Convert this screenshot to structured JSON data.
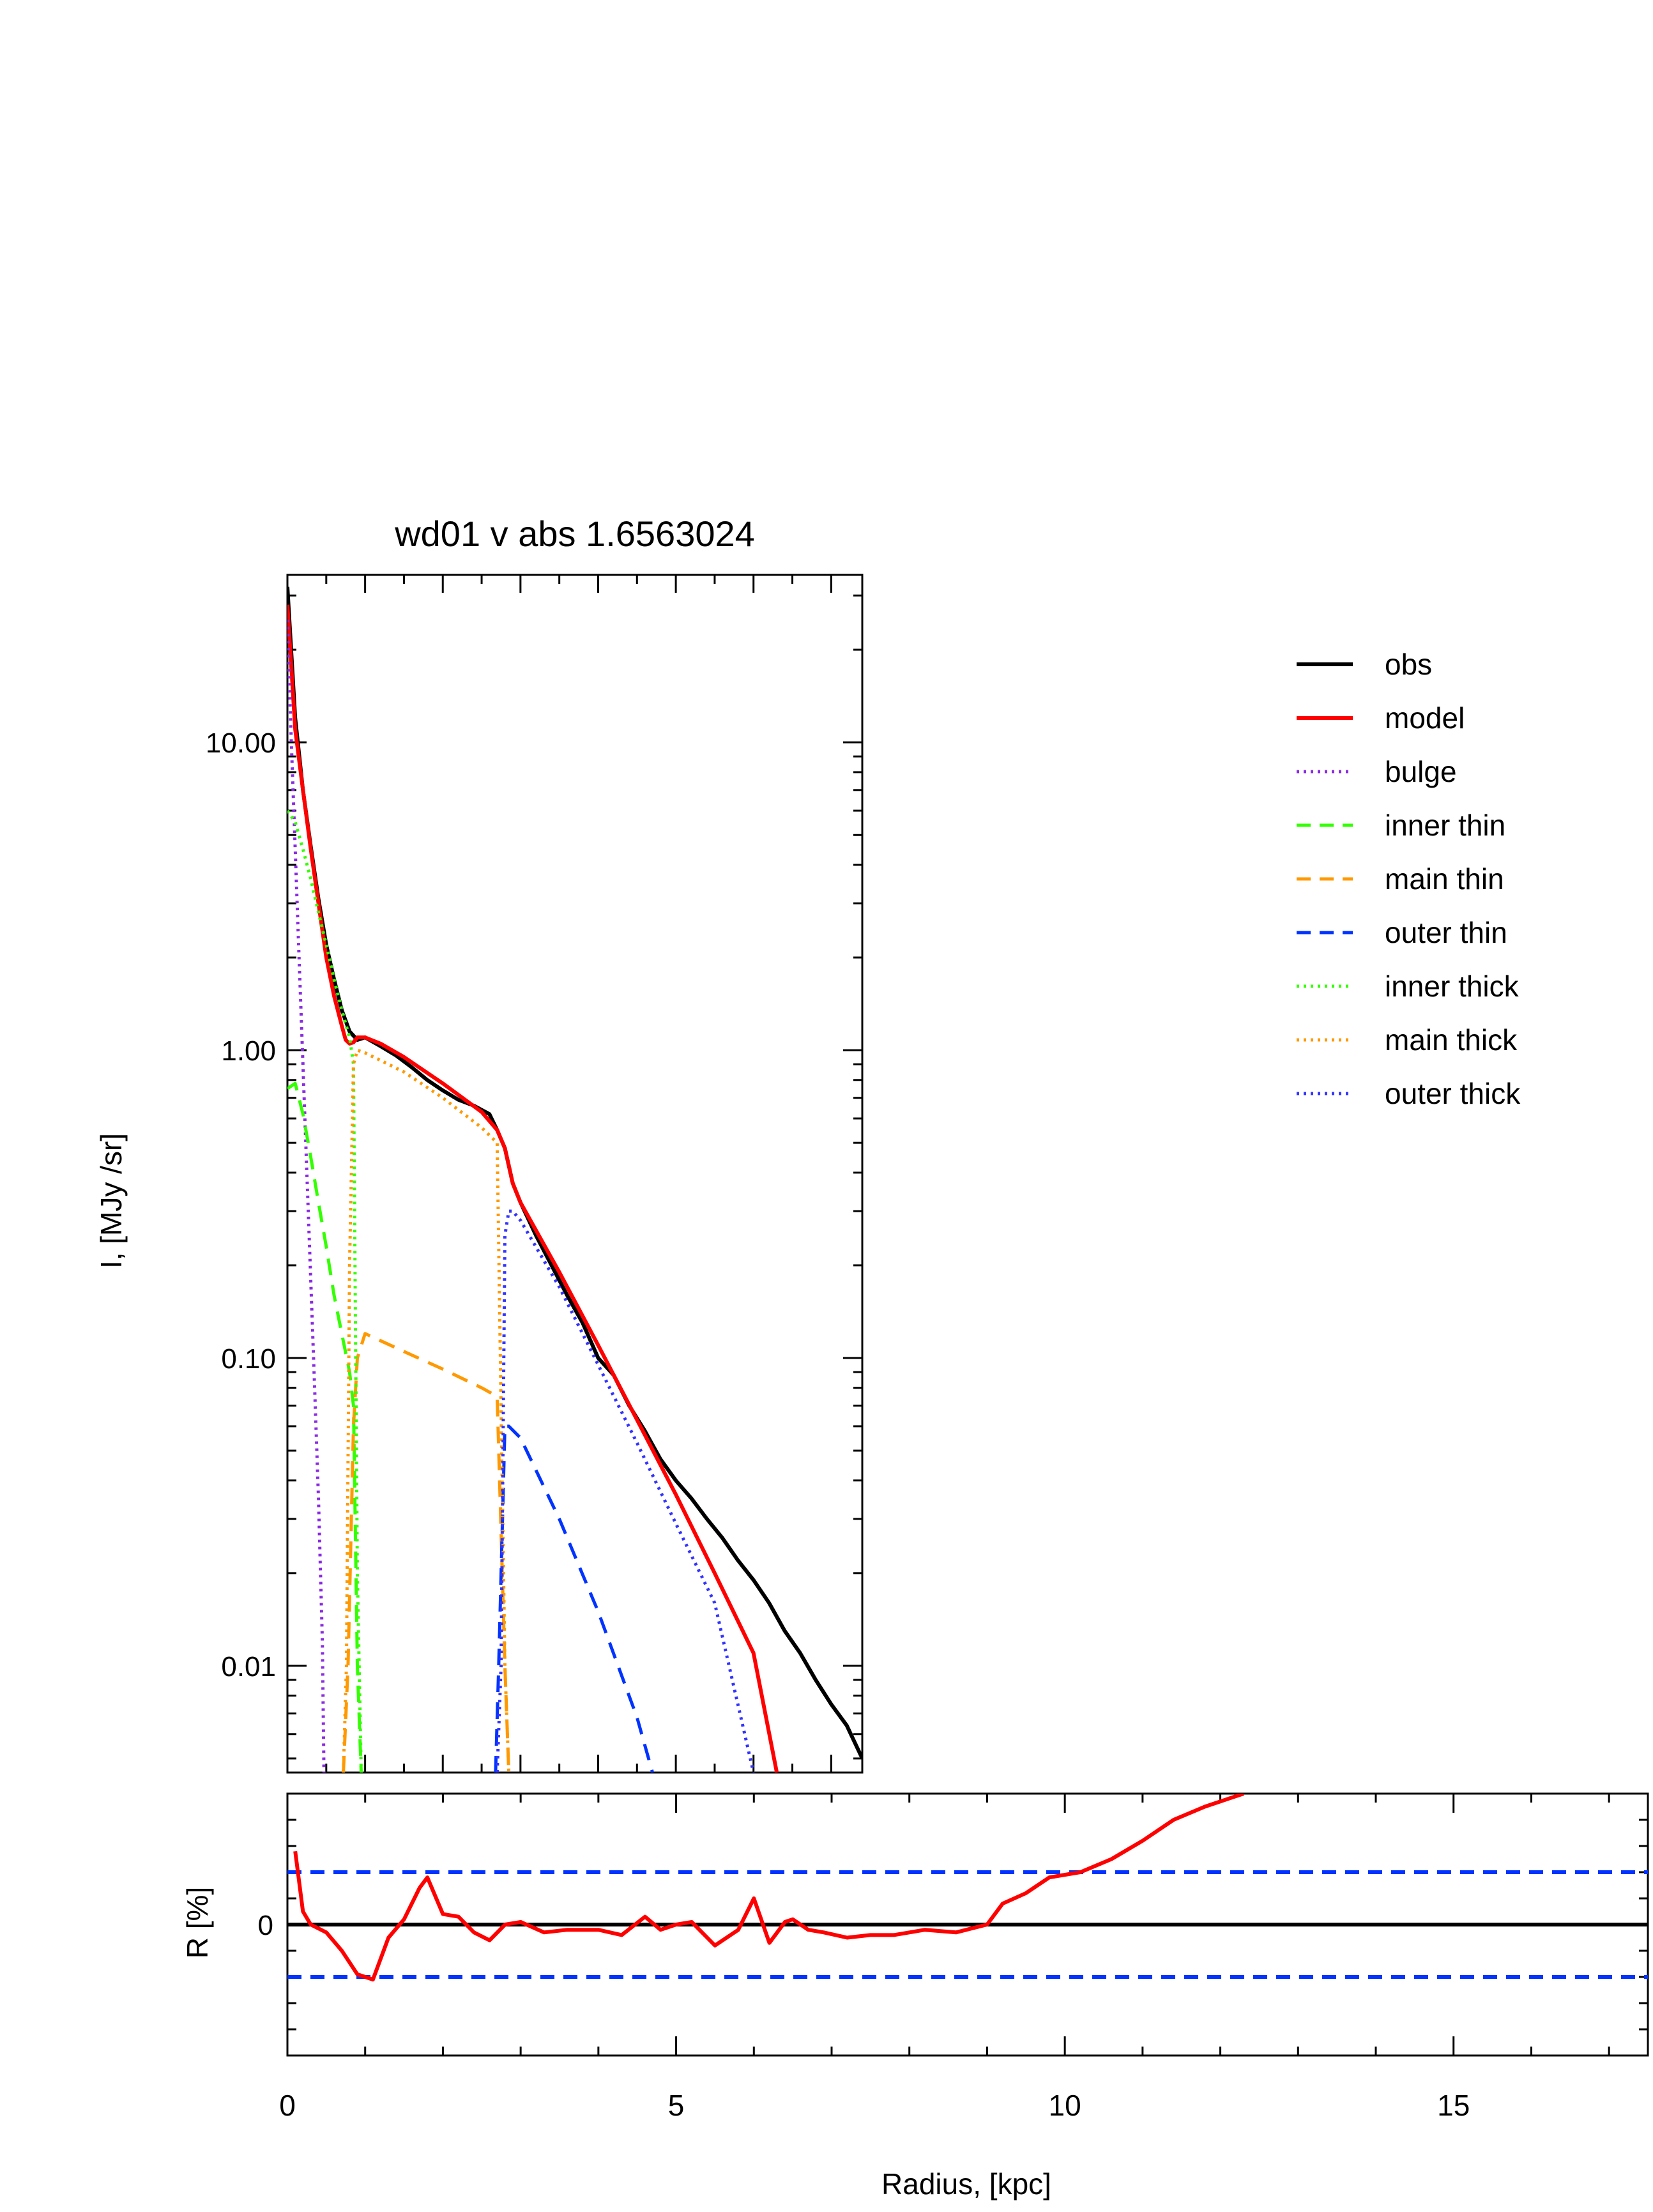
{
  "chart_data": [
    {
      "type": "line",
      "title": "wd01 v abs 1.6563024",
      "ylabel": "I, [MJy /sr]",
      "xlabel": "",
      "xlim": [
        0,
        7.4
      ],
      "ylim": [
        0.0045,
        35
      ],
      "yscale": "log",
      "y_ticks": [
        10,
        1,
        0.1,
        0.01
      ],
      "y_tick_labels": [
        "10.00",
        "1.00",
        "0.10",
        "0.01"
      ],
      "legend_position": "right",
      "series": [
        {
          "name": "obs",
          "color": "#000000",
          "dash": "solid",
          "x": [
            0,
            0.1,
            0.2,
            0.3,
            0.4,
            0.5,
            0.6,
            0.7,
            0.8,
            0.9,
            1.0,
            1.2,
            1.4,
            1.6,
            1.8,
            2.0,
            2.2,
            2.4,
            2.6,
            2.7,
            2.8,
            2.9,
            3.0,
            3.2,
            3.4,
            3.6,
            3.8,
            4.0,
            4.2,
            4.4,
            4.6,
            4.8,
            5.0,
            5.2,
            5.4,
            5.6,
            5.8,
            6.0,
            6.2,
            6.4,
            6.6,
            6.8,
            7.0,
            7.2,
            7.4
          ],
          "y": [
            32,
            12,
            7,
            4.6,
            3.1,
            2.2,
            1.7,
            1.35,
            1.15,
            1.08,
            1.1,
            1.03,
            0.96,
            0.88,
            0.8,
            0.74,
            0.69,
            0.66,
            0.62,
            0.55,
            0.48,
            0.37,
            0.32,
            0.25,
            0.2,
            0.16,
            0.13,
            0.1,
            0.088,
            0.07,
            0.058,
            0.047,
            0.04,
            0.035,
            0.03,
            0.026,
            0.022,
            0.019,
            0.016,
            0.013,
            0.011,
            0.009,
            0.0075,
            0.0064,
            0.005
          ]
        },
        {
          "name": "model",
          "color": "#ff0000",
          "dash": "solid",
          "x": [
            0,
            0.1,
            0.2,
            0.3,
            0.4,
            0.5,
            0.6,
            0.7,
            0.75,
            0.8,
            0.85,
            0.9,
            1.0,
            1.2,
            1.5,
            2.0,
            2.5,
            2.7,
            2.8,
            2.9,
            3.0,
            3.5,
            4.0,
            4.5,
            5.0,
            5.5,
            6.0,
            6.3
          ],
          "y": [
            28,
            11,
            7,
            4.5,
            3.0,
            2.0,
            1.5,
            1.2,
            1.08,
            1.05,
            1.06,
            1.1,
            1.1,
            1.05,
            0.95,
            0.78,
            0.63,
            0.55,
            0.48,
            0.37,
            0.32,
            0.19,
            0.11,
            0.063,
            0.036,
            0.02,
            0.011,
            0.0045
          ]
        },
        {
          "name": "bulge",
          "color": "#8a2be2",
          "dash": "dot",
          "x": [
            0,
            0.05,
            0.1,
            0.15,
            0.2,
            0.25,
            0.3,
            0.35,
            0.4,
            0.45,
            0.47
          ],
          "y": [
            25,
            10,
            4.5,
            2.0,
            0.9,
            0.4,
            0.18,
            0.08,
            0.035,
            0.012,
            0.0045
          ]
        },
        {
          "name": "inner thin",
          "color": "#33ff00",
          "dash": "dash",
          "x": [
            0,
            0.1,
            0.2,
            0.3,
            0.4,
            0.5,
            0.6,
            0.7,
            0.8,
            0.85,
            0.9,
            0.95
          ],
          "y": [
            0.75,
            0.78,
            0.62,
            0.45,
            0.32,
            0.23,
            0.16,
            0.12,
            0.09,
            0.07,
            0.01,
            0.0045
          ]
        },
        {
          "name": "main thin",
          "color": "#ff9900",
          "dash": "dash",
          "x": [
            0.72,
            0.78,
            0.85,
            0.9,
            1.0,
            1.5,
            2.0,
            2.5,
            2.7,
            2.8,
            2.85
          ],
          "y": [
            0.0045,
            0.01,
            0.06,
            0.1,
            0.12,
            0.105,
            0.092,
            0.08,
            0.075,
            0.01,
            0.0045
          ]
        },
        {
          "name": "outer thin",
          "color": "#0033ff",
          "dash": "dash",
          "x": [
            2.68,
            2.72,
            2.8,
            2.85,
            3.0,
            3.5,
            4.0,
            4.5,
            4.7
          ],
          "y": [
            0.0045,
            0.01,
            0.06,
            0.06,
            0.055,
            0.03,
            0.015,
            0.0068,
            0.0045
          ]
        },
        {
          "name": "inner thick",
          "color": "#33ff00",
          "dash": "dot",
          "x": [
            0,
            0.1,
            0.2,
            0.3,
            0.4,
            0.5,
            0.6,
            0.7,
            0.8,
            0.85,
            0.9,
            0.95
          ],
          "y": [
            6,
            5.5,
            4.5,
            3.6,
            2.8,
            2.2,
            1.7,
            1.35,
            1.1,
            0.9,
            0.02,
            0.0045
          ]
        },
        {
          "name": "main thick",
          "color": "#ff9900",
          "dash": "dot",
          "x": [
            0.72,
            0.76,
            0.8,
            0.85,
            0.9,
            1.0,
            1.5,
            2.0,
            2.5,
            2.7,
            2.8,
            2.85
          ],
          "y": [
            0.0045,
            0.01,
            0.2,
            0.9,
            1.0,
            0.98,
            0.85,
            0.7,
            0.56,
            0.5,
            0.01,
            0.0045
          ]
        },
        {
          "name": "outer thick",
          "color": "#3333ff",
          "dash": "dot",
          "x": [
            2.7,
            2.75,
            2.8,
            2.85,
            2.9,
            3.0,
            3.5,
            4.0,
            4.5,
            5.0,
            5.5,
            6.0
          ],
          "y": [
            0.0045,
            0.01,
            0.25,
            0.3,
            0.3,
            0.28,
            0.17,
            0.095,
            0.053,
            0.029,
            0.016,
            0.0045
          ]
        }
      ]
    },
    {
      "type": "line",
      "title": "",
      "ylabel": "R [%]",
      "xlabel": "Radius, [kpc]",
      "xlim": [
        0,
        17.5
      ],
      "ylim": [
        -50,
        50
      ],
      "x_ticks": [
        0,
        5,
        10,
        15
      ],
      "y_ticks": [
        0
      ],
      "series": [
        {
          "name": "",
          "color": "#ff0000",
          "dash": "solid",
          "x": [
            0.1,
            0.2,
            0.3,
            0.5,
            0.7,
            0.9,
            1.1,
            1.3,
            1.5,
            1.7,
            1.8,
            2.0,
            2.2,
            2.4,
            2.6,
            2.8,
            3.0,
            3.3,
            3.6,
            4.0,
            4.3,
            4.6,
            4.8,
            5.0,
            5.2,
            5.5,
            5.8,
            6.0,
            6.2,
            6.4,
            6.5,
            6.6,
            6.7,
            6.9,
            7.2,
            7.5,
            7.8,
            8.2,
            8.6,
            9.0,
            9.2,
            9.5,
            9.8,
            10.2,
            10.6,
            11.0,
            11.4,
            11.8,
            12.1,
            12.3
          ],
          "y": [
            28,
            5,
            0,
            -3,
            -10,
            -19,
            -21,
            -5,
            2,
            14,
            18,
            4,
            3,
            -3,
            -6,
            0,
            1,
            -3,
            -2,
            -2,
            -4,
            3,
            -2,
            0,
            1,
            -8,
            -2,
            10,
            -7,
            1,
            2,
            0,
            -2,
            -3,
            -5,
            -4,
            -4,
            -2,
            -3,
            0,
            8,
            12,
            18,
            20,
            25,
            32,
            40,
            45,
            48,
            50
          ]
        },
        {
          "name": "",
          "color": "#000000",
          "dash": "solid",
          "x": [
            0,
            17.5
          ],
          "y": [
            0,
            0
          ]
        },
        {
          "name": "",
          "color": "#0033ff",
          "dash": "dash",
          "x": [
            0,
            17.5
          ],
          "y": [
            20,
            20
          ]
        },
        {
          "name": "",
          "color": "#0033ff",
          "dash": "dash",
          "x": [
            0,
            17.5
          ],
          "y": [
            -20,
            -20
          ]
        }
      ]
    }
  ]
}
